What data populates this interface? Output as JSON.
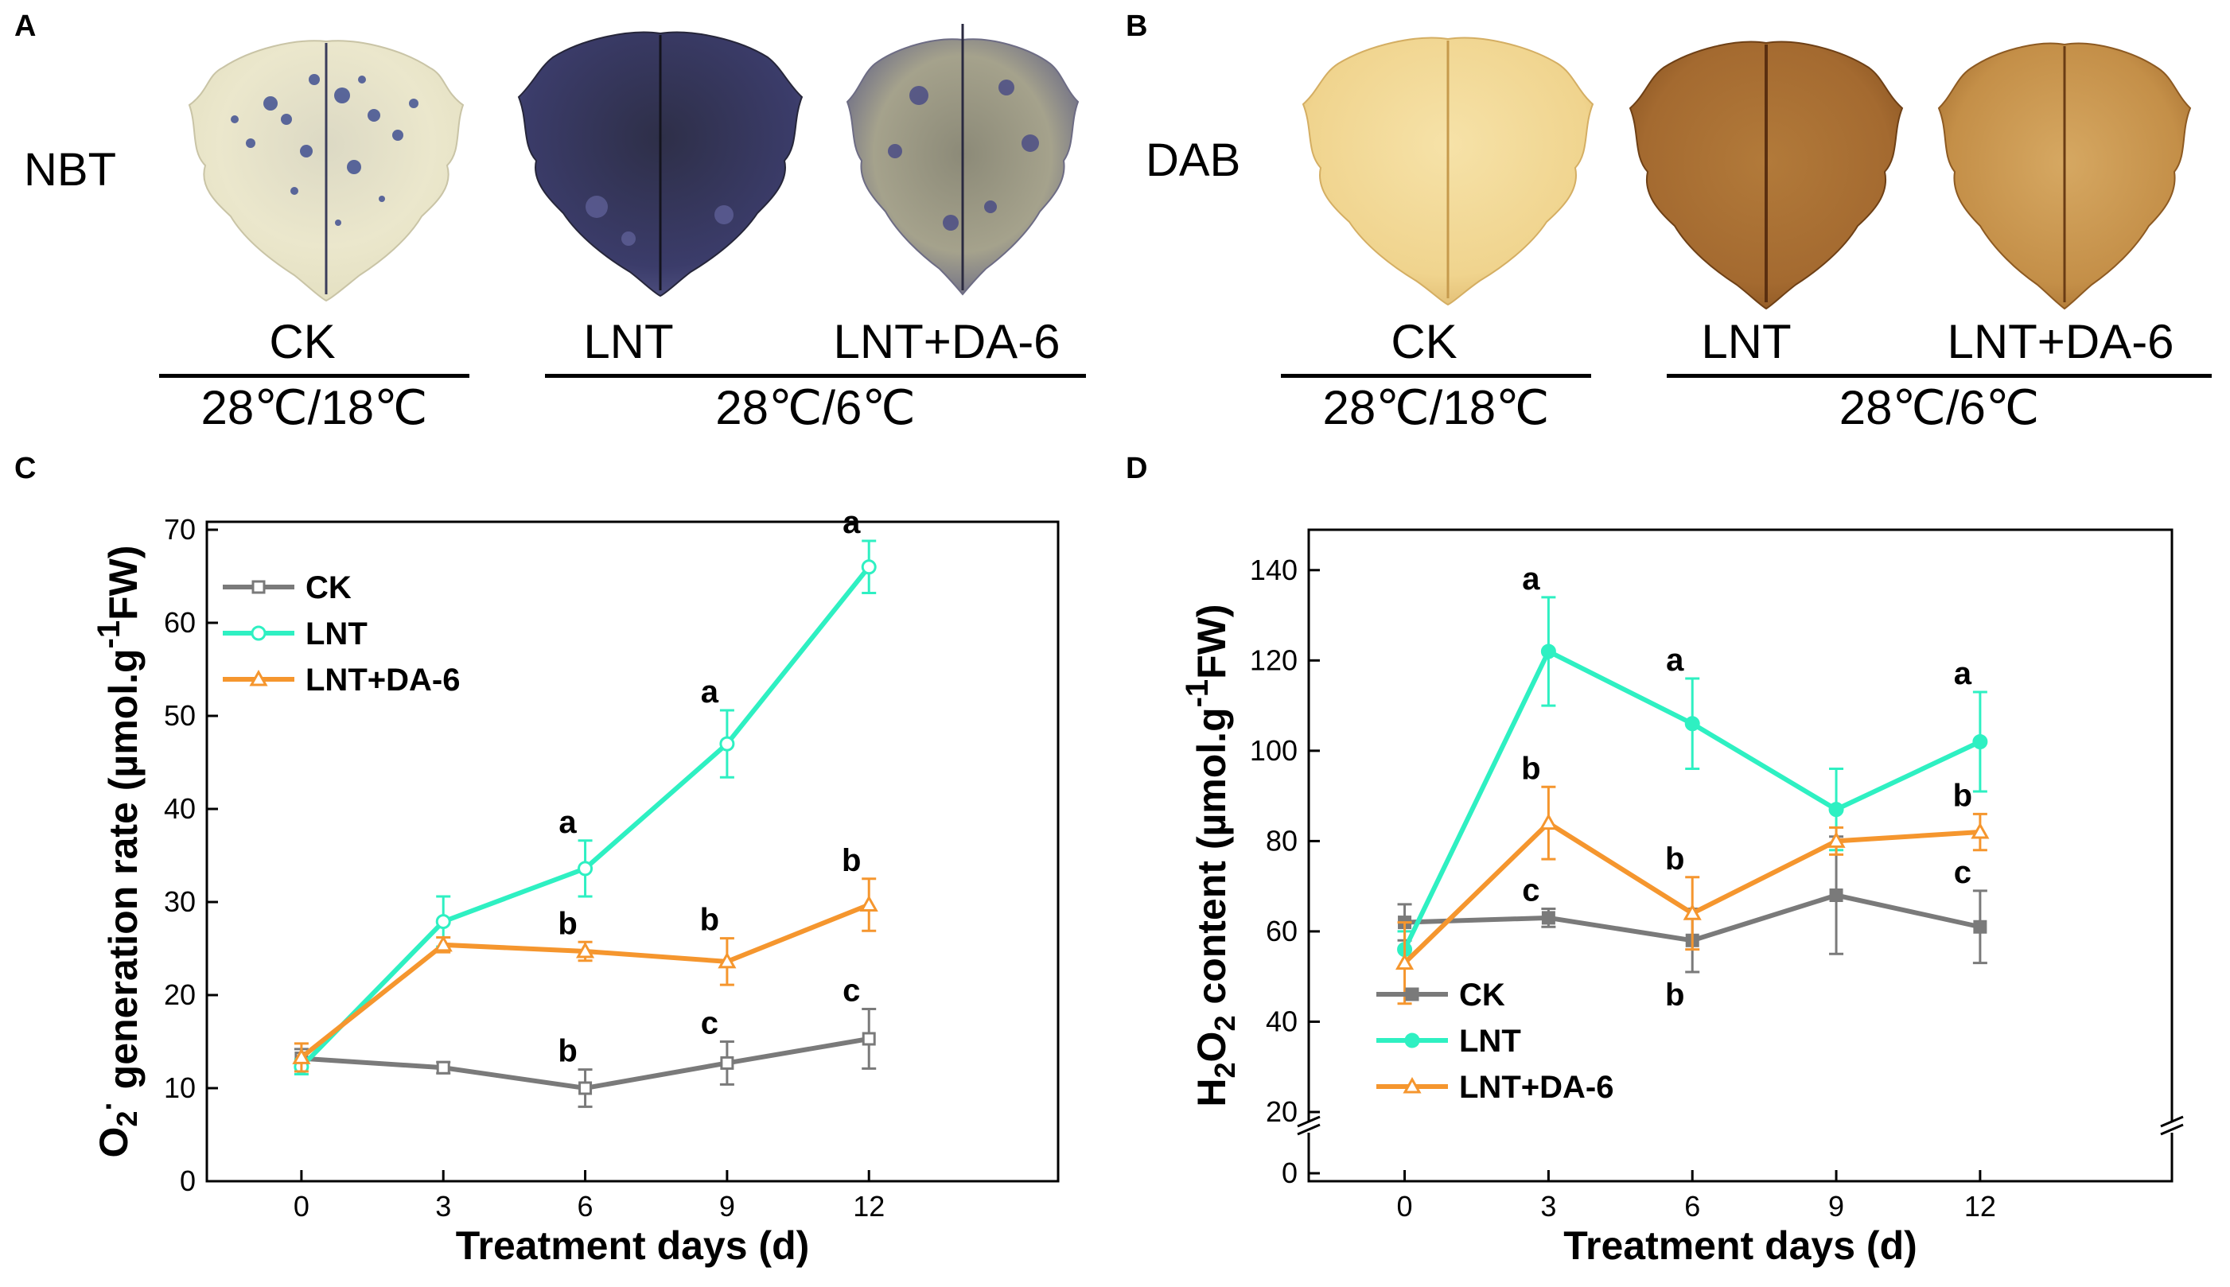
{
  "panels": {
    "A": {
      "letter": "A",
      "stain": "NBT",
      "treatments": [
        "CK",
        "LNT",
        "LNT+DA-6"
      ],
      "conditions": [
        "28℃/18℃",
        "28℃/6℃"
      ]
    },
    "B": {
      "letter": "B",
      "stain": "DAB",
      "treatments": [
        "CK",
        "LNT",
        "LNT+DA-6"
      ],
      "conditions": [
        "28℃/18℃",
        "28℃/6℃"
      ]
    }
  },
  "colors": {
    "ck": "#7a7a7a",
    "lnt": "#2ef0c2",
    "lnt_da6": "#f5962e",
    "nbt_stain": "#2b2d6a",
    "nbt_light": "#ece8cf",
    "dab_light": "#f2d48c",
    "dab_dark": "#8a5420"
  },
  "chart_data": [
    {
      "panel": "C",
      "type": "line",
      "title": "",
      "xlabel": "Treatment days (d)",
      "ylabel_parts": [
        "O",
        "2",
        "·",
        " generation rate (µmol.g",
        "-1",
        "FW)"
      ],
      "x": [
        0,
        3,
        6,
        9,
        12
      ],
      "xticks": [
        "0",
        "3",
        "6",
        "9",
        "12"
      ],
      "yticks": [
        "0",
        "10",
        "20",
        "30",
        "40",
        "50",
        "60",
        "70"
      ],
      "ytick_values": [
        0,
        10,
        20,
        30,
        40,
        50,
        60,
        70
      ],
      "xlim": [
        -2,
        16
      ],
      "ylim": [
        0,
        70
      ],
      "legend": "top-left",
      "series": [
        {
          "name": "CK",
          "key": "ck",
          "marker": "square",
          "filled": false,
          "values": [
            13.2,
            12.2,
            10.0,
            12.7,
            15.3
          ],
          "errors": [
            1.0,
            0.6,
            2.0,
            2.3,
            3.2
          ],
          "labels": [
            "",
            "",
            "b",
            "c",
            "c"
          ]
        },
        {
          "name": "LNT",
          "key": "lnt",
          "marker": "circle",
          "filled": false,
          "values": [
            12.3,
            27.9,
            33.6,
            47.0,
            66.0
          ],
          "errors": [
            0.8,
            2.7,
            3.0,
            3.6,
            2.8
          ],
          "labels": [
            "",
            "",
            "a",
            "a",
            "a"
          ]
        },
        {
          "name": "LNT+DA-6",
          "key": "lnt_da6",
          "marker": "triangle",
          "filled": false,
          "values": [
            13.3,
            25.4,
            24.7,
            23.6,
            29.7
          ],
          "errors": [
            1.5,
            0.8,
            1.0,
            2.5,
            2.8
          ],
          "labels": [
            "",
            "",
            "b",
            "b",
            "b"
          ]
        }
      ]
    },
    {
      "panel": "D",
      "type": "line",
      "title": "",
      "xlabel": "Treatment days (d)",
      "ylabel_parts": [
        "H",
        "2",
        "O",
        "2",
        " content (µmol.g",
        "-1",
        "FW)"
      ],
      "x": [
        0,
        3,
        6,
        9,
        12
      ],
      "xticks": [
        "0",
        "3",
        "6",
        "9",
        "12"
      ],
      "yticks": [
        "0",
        "20",
        "40",
        "60",
        "80",
        "100",
        "120",
        "140"
      ],
      "ytick_values": [
        0,
        20,
        40,
        60,
        80,
        100,
        120,
        140
      ],
      "axis_break": [
        0,
        20
      ],
      "xlim": [
        -2,
        16
      ],
      "ylim": [
        0,
        150
      ],
      "legend": "bottom-left",
      "series": [
        {
          "name": "CK",
          "key": "ck",
          "marker": "square",
          "filled": true,
          "values": [
            62,
            63,
            58,
            68,
            61
          ],
          "errors": [
            4,
            2,
            7,
            13,
            8
          ],
          "labels": [
            "",
            "c",
            "b",
            "",
            "c"
          ]
        },
        {
          "name": "LNT",
          "key": "lnt",
          "marker": "circle",
          "filled": true,
          "values": [
            56,
            122,
            106,
            87,
            102
          ],
          "errors": [
            4,
            12,
            10,
            9,
            11
          ],
          "labels": [
            "",
            "a",
            "a",
            "",
            "a"
          ]
        },
        {
          "name": "LNT+DA-6",
          "key": "lnt_da6",
          "marker": "triangle",
          "filled": false,
          "values": [
            53,
            84,
            64,
            80,
            82
          ],
          "errors": [
            9,
            8,
            8,
            3,
            4
          ],
          "labels": [
            "",
            "b",
            "b",
            "",
            "b"
          ]
        }
      ]
    }
  ]
}
